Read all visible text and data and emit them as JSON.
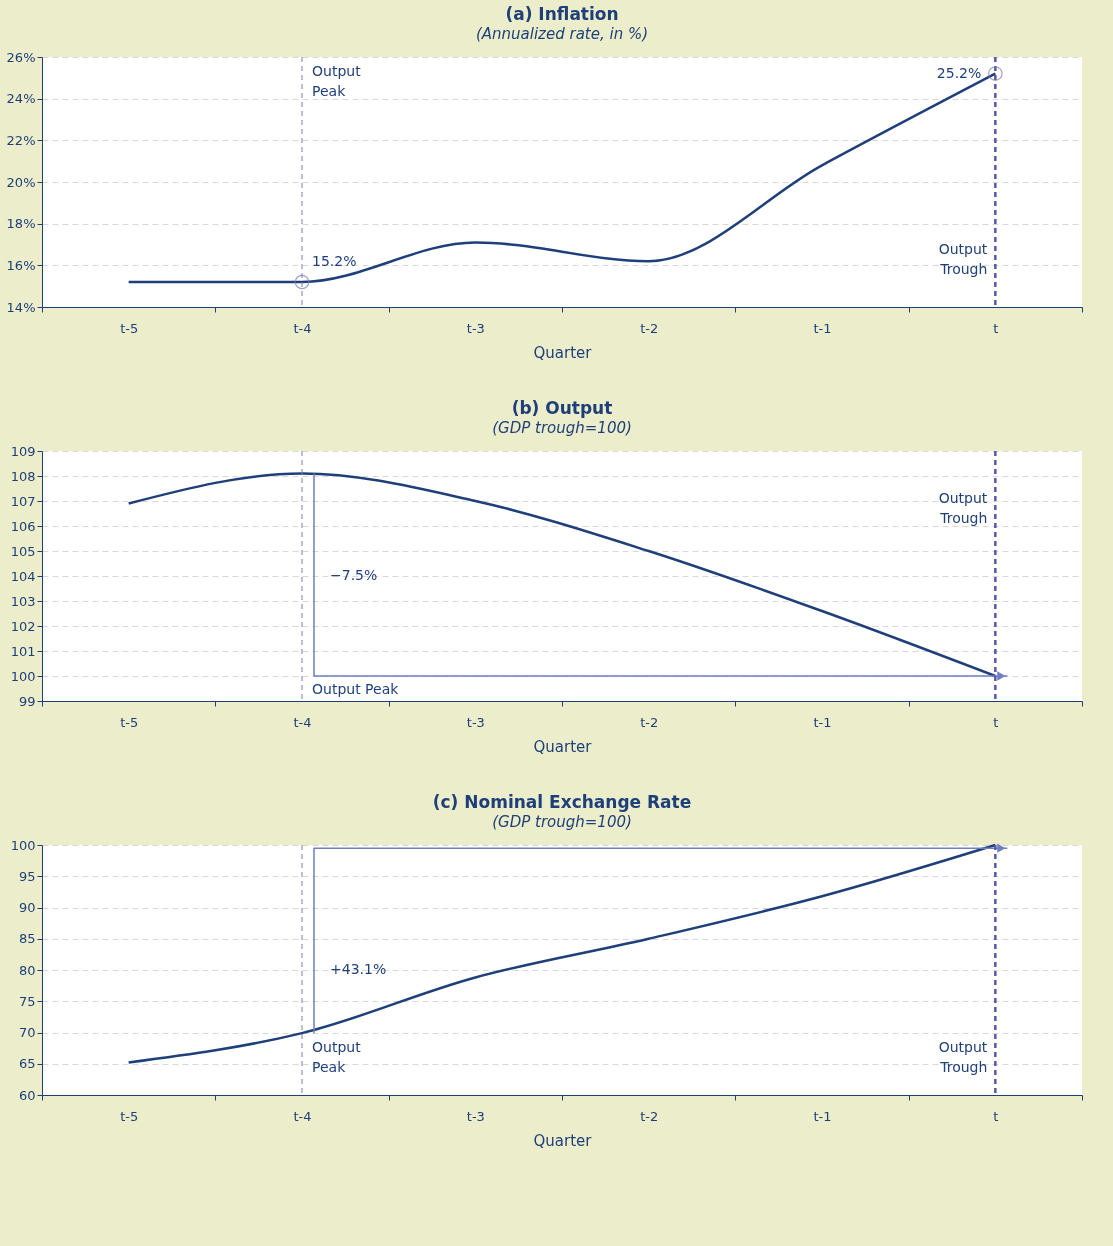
{
  "chart_data": [
    {
      "type": "line",
      "title": "(a) Inflation",
      "subtitle": "(Annualized rate, in %)",
      "xlabel": "Quarter",
      "categories": [
        "t-5",
        "t-4",
        "t-3",
        "t-2",
        "t-1",
        "t"
      ],
      "series": [
        {
          "color": "#1f3f7a",
          "values": [
            15.2,
            15.2,
            17.1,
            16.2,
            20.8,
            25.2
          ]
        }
      ],
      "ylim": [
        14,
        26
      ],
      "yticks": [
        {
          "value": 14,
          "label": "14%"
        },
        {
          "value": 16,
          "label": "16%"
        },
        {
          "value": 18,
          "label": "18%"
        },
        {
          "value": 20,
          "label": "20%"
        },
        {
          "value": 22,
          "label": "22%"
        },
        {
          "value": 24,
          "label": "24%"
        },
        {
          "value": 26,
          "label": "26%"
        }
      ],
      "grid": "y",
      "line_style": "solid",
      "ref_lines": [
        {
          "axis": "x",
          "value": "t-4",
          "label": "Output Peak",
          "color": "#7b78b8",
          "line_style": "dashed"
        },
        {
          "axis": "x",
          "value": "t",
          "label": "Output Trough",
          "color": "#5a57a8",
          "line_style": "dashed"
        }
      ],
      "annotations": [
        {
          "text": "15.2%",
          "x": "t-4",
          "y": 15.2
        },
        {
          "text": "25.2%",
          "x": "t",
          "y": 25.2
        }
      ]
    },
    {
      "type": "line",
      "title": "(b) Output",
      "subtitle": "(GDP trough=100)",
      "xlabel": "Quarter",
      "categories": [
        "t-5",
        "t-4",
        "t-3",
        "t-2",
        "t-1",
        "t"
      ],
      "series": [
        {
          "color": "#1f3f7a",
          "values": [
            106.9,
            108.1,
            107.0,
            105.0,
            102.6,
            100
          ]
        },
        {
          "type": "line",
          "color": "#6f7fc0",
          "x": [
            "t-4",
            "t-4",
            "t"
          ],
          "values": [
            108.1,
            100,
            100
          ]
        }
      ],
      "ylim": [
        99,
        109
      ],
      "yticks": [
        99,
        100,
        101,
        102,
        103,
        104,
        105,
        106,
        107,
        108,
        109
      ],
      "grid": "y",
      "line_style": "solid",
      "ref_lines": [
        {
          "axis": "x",
          "value": "t-4",
          "label": "Output Peak",
          "color": "#7b78b8",
          "line_style": "dashed"
        },
        {
          "axis": "x",
          "value": "t",
          "label": "Output Trough",
          "color": "#5a57a8",
          "line_style": "dashed"
        }
      ],
      "annotations": [
        {
          "text": "−7.5%",
          "x": "t-4",
          "y": 104
        }
      ]
    },
    {
      "type": "line",
      "title": "(c) Nominal Exchange Rate",
      "subtitle": "(GDP trough=100)",
      "xlabel": "Quarter",
      "categories": [
        "t-5",
        "t-4",
        "t-3",
        "t-2",
        "t-1",
        "t"
      ],
      "series": [
        {
          "color": "#1f3f7a",
          "values": [
            65.2,
            69.9,
            78.8,
            85.0,
            91.8,
            100
          ]
        },
        {
          "type": "line",
          "color": "#6f7fc0",
          "x": [
            "t-4",
            "t-4",
            "t"
          ],
          "values": [
            69.9,
            99.5,
            99.5
          ]
        }
      ],
      "ylim": [
        60,
        100
      ],
      "yticks": [
        60,
        65,
        70,
        75,
        80,
        85,
        90,
        95,
        100
      ],
      "grid": "y",
      "line_style": "solid",
      "ref_lines": [
        {
          "axis": "x",
          "value": "t-4",
          "label": "Output Peak",
          "color": "#7b78b8",
          "line_style": "dashed"
        },
        {
          "axis": "x",
          "value": "t",
          "label": "Output Trough",
          "color": "#5a57a8",
          "line_style": "dashed"
        }
      ],
      "annotations": [
        {
          "text": "+43.1%",
          "x": "t-4",
          "y": 80
        }
      ]
    }
  ]
}
